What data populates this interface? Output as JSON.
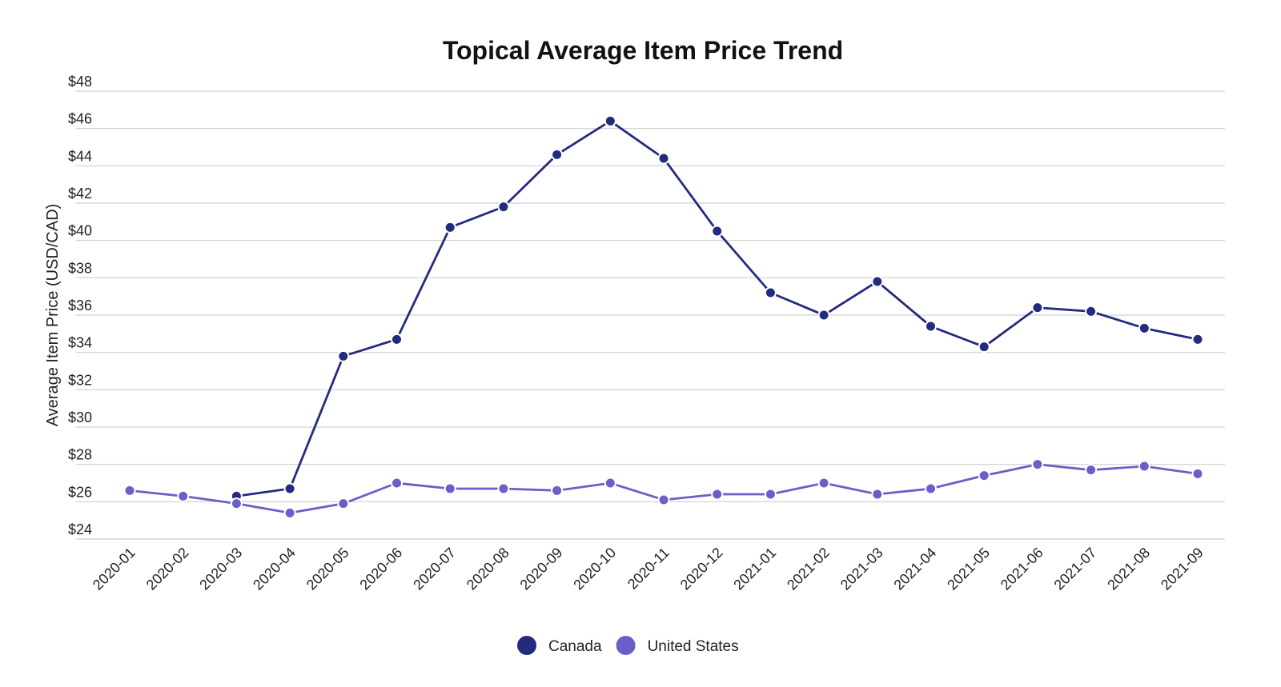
{
  "chart_data": {
    "type": "line",
    "title": "Topical Average Item Price Trend",
    "xlabel": "",
    "ylabel": "Average Item Price (USD/CAD)",
    "ylim": [
      24,
      48
    ],
    "yticks": [
      24,
      26,
      28,
      30,
      32,
      34,
      36,
      38,
      40,
      42,
      44,
      46,
      48
    ],
    "ytick_prefix": "$",
    "grid": true,
    "legend_position": "bottom-center",
    "categories": [
      "2020-01",
      "2020-02",
      "2020-03",
      "2020-04",
      "2020-05",
      "2020-06",
      "2020-07",
      "2020-08",
      "2020-09",
      "2020-10",
      "2020-11",
      "2020-12",
      "2021-01",
      "2021-02",
      "2021-03",
      "2021-04",
      "2021-05",
      "2021-06",
      "2021-07",
      "2021-08",
      "2021-09"
    ],
    "series": [
      {
        "name": "Canada",
        "color": "#232b7e",
        "values": [
          null,
          null,
          26.3,
          26.7,
          33.8,
          34.7,
          40.7,
          41.8,
          44.6,
          46.4,
          44.4,
          40.5,
          37.2,
          36.0,
          37.8,
          35.4,
          34.3,
          36.4,
          36.2,
          35.3,
          34.7
        ]
      },
      {
        "name": "United States",
        "color": "#6a5fc8",
        "values": [
          26.6,
          26.3,
          25.9,
          25.4,
          25.9,
          27.0,
          26.7,
          26.7,
          26.6,
          27.0,
          26.1,
          26.4,
          26.4,
          27.0,
          26.4,
          26.7,
          27.4,
          28.0,
          27.7,
          27.9,
          27.5
        ]
      }
    ]
  }
}
